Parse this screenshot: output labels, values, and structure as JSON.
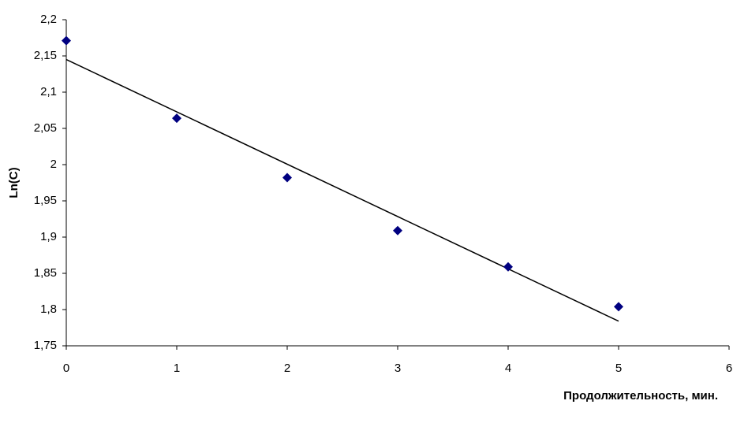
{
  "chart_data": {
    "type": "scatter",
    "x_label": "Продолжительность, мин.",
    "y_label": "Ln(C)",
    "x": [
      0,
      1,
      2,
      3,
      4,
      5
    ],
    "values": [
      2.171,
      2.064,
      1.982,
      1.909,
      1.859,
      1.804
    ],
    "color": "#000080",
    "trendline": {
      "x": [
        0,
        5
      ],
      "values": [
        2.145,
        1.784
      ],
      "color": "#000000"
    },
    "xlim": [
      0,
      6
    ],
    "xticks": [
      0,
      1,
      2,
      3,
      4,
      5,
      6
    ],
    "ylim": [
      1.75,
      2.2
    ],
    "yticks": [
      {
        "value": 1.75,
        "label": "1,75"
      },
      {
        "value": 1.8,
        "label": "1,8"
      },
      {
        "value": 1.85,
        "label": "1,85"
      },
      {
        "value": 1.9,
        "label": "1,9"
      },
      {
        "value": 1.95,
        "label": "1,95"
      },
      2,
      {
        "value": 2.05,
        "label": "2,05"
      },
      {
        "value": 2.1,
        "label": "2,1"
      },
      {
        "value": 2.15,
        "label": "2,15"
      },
      {
        "value": 2.2,
        "label": "2,2"
      }
    ],
    "grid": false
  }
}
